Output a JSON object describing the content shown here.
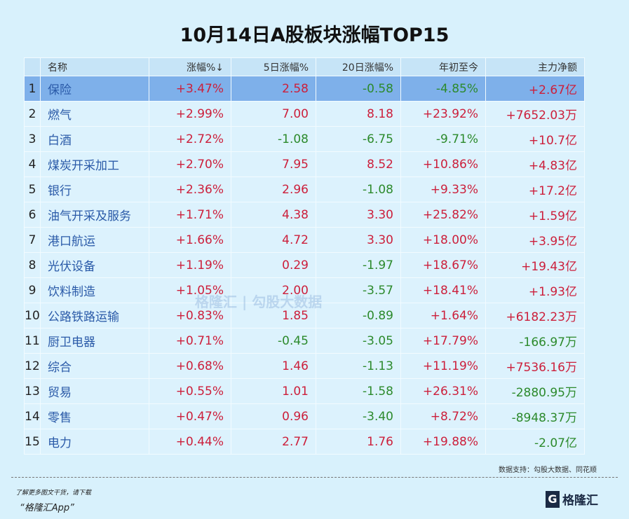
{
  "title": "10月14日A股板块涨幅TOP15",
  "headers": [
    "",
    "名称",
    "涨幅%↓",
    "5日涨幅%",
    "20日涨幅%",
    "年初至今",
    "主力净额"
  ],
  "rows": [
    [
      "1",
      "保险",
      "+3.47%",
      "2.58",
      "-0.58",
      "-4.85%",
      "+2.67亿"
    ],
    [
      "2",
      "燃气",
      "+2.99%",
      "7.00",
      "8.18",
      "+23.92%",
      "+7652.03万"
    ],
    [
      "3",
      "白酒",
      "+2.72%",
      "-1.08",
      "-6.75",
      "-9.71%",
      "+10.7亿"
    ],
    [
      "4",
      "煤炭开采加工",
      "+2.70%",
      "7.95",
      "8.52",
      "+10.86%",
      "+4.83亿"
    ],
    [
      "5",
      "银行",
      "+2.36%",
      "2.96",
      "-1.08",
      "+9.33%",
      "+17.2亿"
    ],
    [
      "6",
      "油气开采及服务",
      "+1.71%",
      "4.38",
      "3.30",
      "+25.82%",
      "+1.59亿"
    ],
    [
      "7",
      "港口航运",
      "+1.66%",
      "4.72",
      "3.30",
      "+18.00%",
      "+3.95亿"
    ],
    [
      "8",
      "光伏设备",
      "+1.19%",
      "0.29",
      "-1.97",
      "+18.67%",
      "+19.43亿"
    ],
    [
      "9",
      "饮料制造",
      "+1.05%",
      "2.00",
      "-3.57",
      "+18.41%",
      "+1.93亿"
    ],
    [
      "10",
      "公路铁路运输",
      "+0.83%",
      "1.85",
      "-0.89",
      "+1.64%",
      "+6182.23万"
    ],
    [
      "11",
      "厨卫电器",
      "+0.71%",
      "-0.45",
      "-3.05",
      "+17.79%",
      "-166.97万"
    ],
    [
      "12",
      "综合",
      "+0.68%",
      "1.46",
      "-1.13",
      "+11.19%",
      "+7536.16万"
    ],
    [
      "13",
      "贸易",
      "+0.55%",
      "1.01",
      "-1.58",
      "+26.31%",
      "-2880.95万"
    ],
    [
      "14",
      "零售",
      "+0.47%",
      "0.96",
      "-3.40",
      "+8.72%",
      "-8948.37万"
    ],
    [
      "15",
      "电力",
      "+0.44%",
      "2.77",
      "1.76",
      "+19.88%",
      "-2.07亿"
    ]
  ],
  "watermark": "格隆汇 | 勾股大数据",
  "source": "数据支持：勾股大数据、同花顺",
  "promo": "了解更多图文干货，请下载",
  "app": "“格隆汇App”",
  "logo": "格隆汇",
  "colors": {
    "up": "#cc1f3b",
    "down": "#2c8a2c",
    "selected": "#7eb0ea"
  }
}
